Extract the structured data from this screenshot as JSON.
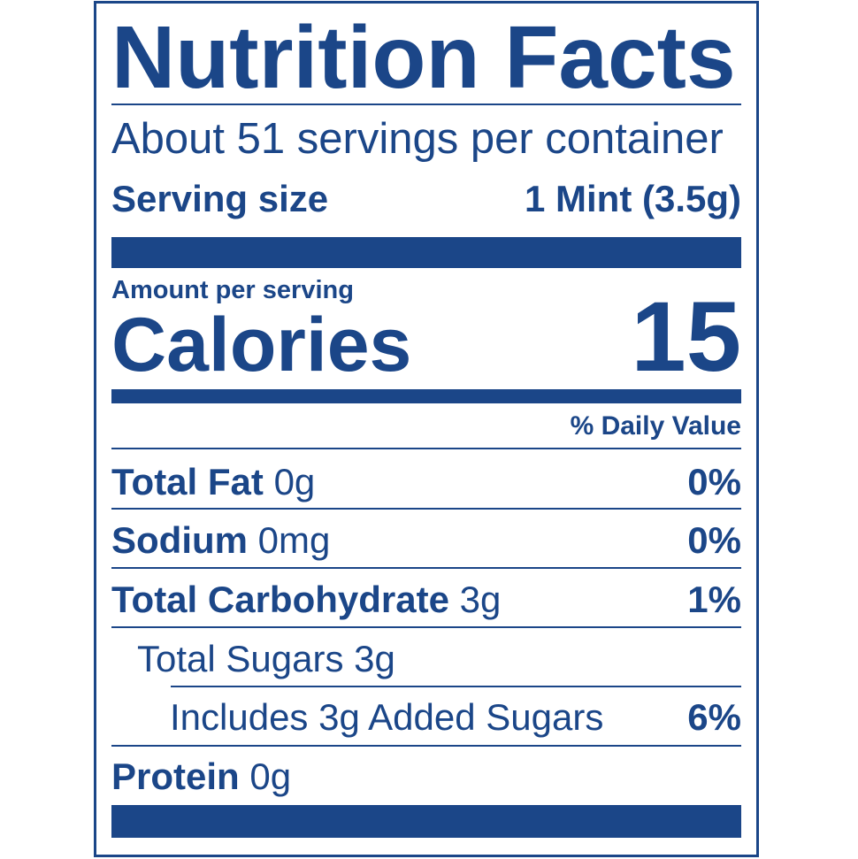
{
  "title": "Nutrition Facts",
  "servings_per_container": "About 51 servings per container",
  "serving_size": {
    "label": "Serving size",
    "value": "1 Mint (3.5g)"
  },
  "amount_per_serving": "Amount per serving",
  "calories": {
    "label": "Calories",
    "value": "15"
  },
  "daily_value_header": "% Daily Value",
  "nutrients": [
    {
      "label": "Total Fat",
      "amount": "0g",
      "dv": "0%"
    },
    {
      "label": "Sodium",
      "amount": "0mg",
      "dv": "0%"
    },
    {
      "label": "Total Carbohydrate",
      "amount": "3g",
      "dv": "1%"
    },
    {
      "label": "Total Sugars 3g"
    },
    {
      "label": "Includes 3g Added Sugars",
      "dv": "6%"
    },
    {
      "label": "Protein",
      "amount": "0g"
    }
  ],
  "colors": {
    "ink": "#1b4688",
    "background": "#ffffff"
  }
}
